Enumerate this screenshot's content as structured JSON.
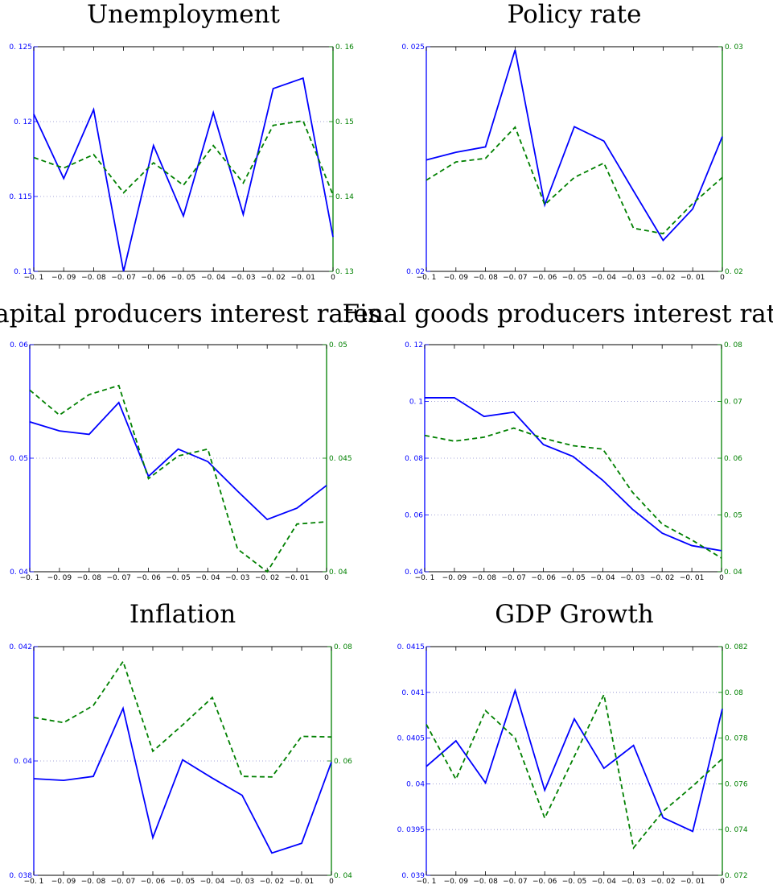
{
  "chart_data": [
    {
      "type": "line",
      "title": "Unemployment",
      "x": [
        -0.1,
        -0.09,
        -0.08,
        -0.07,
        -0.06,
        -0.05,
        -0.04,
        -0.03,
        -0.02,
        -0.01,
        0
      ],
      "x_tick_labels": [
        "−0. 1",
        "−0. 09",
        "−0. 08",
        "−0. 07",
        "−0. 06",
        "−0. 05",
        "−0. 04",
        "−0. 03",
        "−0. 02",
        "−0. 01",
        "0"
      ],
      "ylim_left": [
        0.11,
        0.125
      ],
      "left_ticks": [
        0.11,
        0.115,
        0.12,
        0.125
      ],
      "left_tick_labels": [
        "0. 11",
        "0. 115",
        "0. 12",
        "0. 125"
      ],
      "ylim_right": [
        0.13,
        0.16
      ],
      "right_ticks": [
        0.13,
        0.14,
        0.15,
        0.16
      ],
      "right_tick_labels": [
        "0. 13",
        "0. 14",
        "0. 15",
        "0. 16"
      ],
      "series": [
        {
          "axis": "left",
          "style": "solid",
          "color": "#0000ff",
          "values": [
            0.1205,
            0.1162,
            0.1208,
            0.11,
            0.1184,
            0.1137,
            0.1206,
            0.1138,
            0.1222,
            0.1229,
            0.1123
          ]
        },
        {
          "axis": "right",
          "style": "dashed",
          "color": "#008000",
          "values": [
            0.1452,
            0.1438,
            0.1456,
            0.1405,
            0.1445,
            0.1415,
            0.1468,
            0.1418,
            0.1495,
            0.1501,
            0.1402
          ]
        }
      ],
      "grid": "horizontal-dotted"
    },
    {
      "type": "line",
      "title": "Policy rate",
      "x": [
        -0.1,
        -0.09,
        -0.08,
        -0.07,
        -0.06,
        -0.05,
        -0.04,
        -0.03,
        -0.02,
        -0.01,
        0
      ],
      "x_tick_labels": [
        "−0. 1",
        "−0. 09",
        "−0. 08",
        "−0. 07",
        "−0. 06",
        "−0. 05",
        "−0. 04",
        "−0. 03",
        "−0. 02",
        "−0. 01",
        "0"
      ],
      "ylim_left": [
        0.02,
        0.025
      ],
      "left_ticks": [
        0.02,
        0.025
      ],
      "left_tick_labels": [
        "0. 02",
        "0. 025"
      ],
      "ylim_right": [
        0.02,
        0.03
      ],
      "right_ticks": [
        0.02,
        0.03
      ],
      "right_tick_labels": [
        "0. 02",
        "0. 03"
      ],
      "series": [
        {
          "axis": "left",
          "style": "solid",
          "color": "#0000ff",
          "values": [
            0.02248,
            0.02265,
            0.02277,
            0.02493,
            0.02148,
            0.02322,
            0.0229,
            0.02179,
            0.02069,
            0.02139,
            0.023
          ]
        },
        {
          "axis": "right",
          "style": "dashed",
          "color": "#008000",
          "values": [
            0.02406,
            0.02487,
            0.02503,
            0.02642,
            0.02297,
            0.02418,
            0.02482,
            0.02192,
            0.02168,
            0.02302,
            0.02418
          ]
        }
      ],
      "grid": "horizontal-dotted"
    },
    {
      "type": "line",
      "title": "Capital producers interest rates",
      "x": [
        -0.1,
        -0.09,
        -0.08,
        -0.07,
        -0.06,
        -0.05,
        -0.04,
        -0.03,
        -0.02,
        -0.01,
        0
      ],
      "x_tick_labels": [
        "−0. 1",
        "−0. 09",
        "−0. 08",
        "−0. 07",
        "−0. 06",
        "−0. 05",
        "−0. 04",
        "−0. 03",
        "−0. 02",
        "−0. 01",
        "0"
      ],
      "ylim_left": [
        0.04,
        0.06
      ],
      "left_ticks": [
        0.04,
        0.05,
        0.06
      ],
      "left_tick_labels": [
        "0. 04",
        "0. 05",
        "0. 06"
      ],
      "ylim_right": [
        0.04,
        0.05
      ],
      "right_ticks": [
        0.04,
        0.045,
        0.05
      ],
      "right_tick_labels": [
        "0. 04",
        "0. 045",
        "0. 05"
      ],
      "series": [
        {
          "axis": "left",
          "style": "solid",
          "color": "#0000ff",
          "values": [
            0.0532,
            0.0524,
            0.0521,
            0.0549,
            0.0484,
            0.0508,
            0.0497,
            0.0471,
            0.0446,
            0.0456,
            0.0476
          ]
        },
        {
          "axis": "right",
          "style": "dashed",
          "color": "#008000",
          "values": [
            0.048,
            0.0469,
            0.0478,
            0.0482,
            0.0441,
            0.0451,
            0.0454,
            0.041,
            0.04,
            0.0421,
            0.0422
          ]
        }
      ],
      "grid": "horizontal-dotted"
    },
    {
      "type": "line",
      "title": "Final goods producers interest rates",
      "x": [
        -0.1,
        -0.09,
        -0.08,
        -0.07,
        -0.06,
        -0.05,
        -0.04,
        -0.03,
        -0.02,
        -0.01,
        0
      ],
      "x_tick_labels": [
        "−0. 1",
        "−0. 09",
        "−0. 08",
        "−0. 07",
        "−0. 06",
        "−0. 05",
        "−0. 04",
        "−0. 03",
        "−0. 02",
        "−0. 01",
        "0"
      ],
      "ylim_left": [
        0.04,
        0.12
      ],
      "left_ticks": [
        0.04,
        0.06,
        0.08,
        0.1,
        0.12
      ],
      "left_tick_labels": [
        "0. 04",
        "0. 06",
        "0. 08",
        "0. 1",
        "0. 12"
      ],
      "ylim_right": [
        0.04,
        0.08
      ],
      "right_ticks": [
        0.04,
        0.05,
        0.06,
        0.07,
        0.08
      ],
      "right_tick_labels": [
        "0. 04",
        "0. 05",
        "0. 06",
        "0. 07",
        "0. 08"
      ],
      "series": [
        {
          "axis": "left",
          "style": "solid",
          "color": "#0000ff",
          "values": [
            0.1013,
            0.1013,
            0.0947,
            0.0962,
            0.0848,
            0.0806,
            0.0722,
            0.062,
            0.0536,
            0.0492,
            0.0474
          ]
        },
        {
          "axis": "right",
          "style": "dashed",
          "color": "#008000",
          "values": [
            0.064,
            0.063,
            0.0637,
            0.0653,
            0.0635,
            0.0622,
            0.0616,
            0.054,
            0.0484,
            0.0456,
            0.0424
          ]
        }
      ],
      "grid": "horizontal-dotted"
    },
    {
      "type": "line",
      "title": "Inflation",
      "x": [
        -0.1,
        -0.09,
        -0.08,
        -0.07,
        -0.06,
        -0.05,
        -0.04,
        -0.03,
        -0.02,
        -0.01,
        0
      ],
      "x_tick_labels": [
        "−0. 1",
        "−0. 09",
        "−0. 08",
        "−0. 07",
        "−0. 06",
        "−0. 05",
        "−0. 04",
        "−0. 03",
        "−0. 02",
        "−0. 01",
        "0"
      ],
      "ylim_left": [
        0.038,
        0.042
      ],
      "left_ticks": [
        0.038,
        0.04,
        0.042
      ],
      "left_tick_labels": [
        "0. 038",
        "0. 04",
        "0. 042"
      ],
      "ylim_right": [
        0.04,
        0.08
      ],
      "right_ticks": [
        0.04,
        0.06,
        0.08
      ],
      "right_tick_labels": [
        "0. 04",
        "0. 06",
        "0. 08"
      ],
      "series": [
        {
          "axis": "left",
          "style": "solid",
          "color": "#0000ff",
          "values": [
            0.03969,
            0.03966,
            0.03973,
            0.04092,
            0.03866,
            0.04002,
            0.0397,
            0.0394,
            0.03839,
            0.03856,
            0.03998
          ]
        },
        {
          "axis": "right",
          "style": "dashed",
          "color": "#008000",
          "values": [
            0.0676,
            0.0667,
            0.0697,
            0.0774,
            0.0617,
            0.0663,
            0.0711,
            0.0573,
            0.0572,
            0.0643,
            0.0642
          ]
        }
      ],
      "grid": "horizontal-dotted"
    },
    {
      "type": "line",
      "title": "GDP Growth",
      "x": [
        -0.1,
        -0.09,
        -0.08,
        -0.07,
        -0.06,
        -0.05,
        -0.04,
        -0.03,
        -0.02,
        -0.01,
        0
      ],
      "x_tick_labels": [
        "−0. 1",
        "−0. 09",
        "−0. 08",
        "−0. 07",
        "−0. 06",
        "−0. 05",
        "−0. 04",
        "−0. 03",
        "−0. 02",
        "−0. 01",
        "0"
      ],
      "ylim_left": [
        0.039,
        0.0415
      ],
      "left_ticks": [
        0.039,
        0.0395,
        0.04,
        0.0405,
        0.041,
        0.0415
      ],
      "left_tick_labels": [
        "0. 039",
        "0. 0395",
        "0. 04",
        "0. 0405",
        "0. 041",
        "0. 0415"
      ],
      "ylim_right": [
        0.072,
        0.082
      ],
      "right_ticks": [
        0.072,
        0.074,
        0.076,
        0.078,
        0.08,
        0.082
      ],
      "right_tick_labels": [
        "0. 072",
        "0. 074",
        "0. 076",
        "0. 078",
        "0. 08",
        "0. 082"
      ],
      "series": [
        {
          "axis": "left",
          "style": "solid",
          "color": "#0000ff",
          "values": [
            0.04019,
            0.04047,
            0.04001,
            0.04102,
            0.03993,
            0.04071,
            0.04017,
            0.04042,
            0.03963,
            0.03948,
            0.04082
          ]
        },
        {
          "axis": "right",
          "style": "dashed",
          "color": "#008000",
          "values": [
            0.0786,
            0.0762,
            0.0792,
            0.078,
            0.0745,
            0.0772,
            0.0799,
            0.0732,
            0.0748,
            0.0759,
            0.0771
          ]
        }
      ],
      "grid": "horizontal-dotted"
    }
  ]
}
